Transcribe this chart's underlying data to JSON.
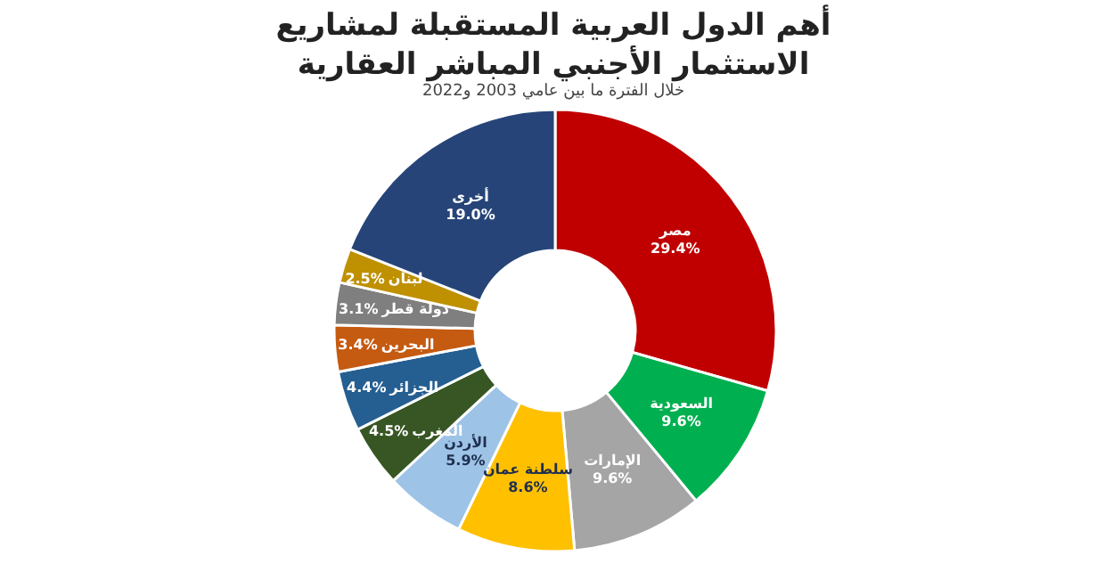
{
  "chart_data": {
    "type": "donut",
    "title": "أهم الدول العربية المستقبلة لمشاريع\nالاستثمار الأجنبي المباشر العقارية",
    "subtitle": "خلال الفترة ما بين عامي 2003 و2022",
    "categories": [
      "مصر",
      "السعودية",
      "الإمارات",
      "سلطنة عمان",
      "الأردن",
      "المغرب",
      "الجزائر",
      "البحرين",
      "دولة قطر",
      "لبنان",
      "أخرى"
    ],
    "values": [
      29.4,
      9.6,
      9.6,
      8.6,
      5.9,
      4.5,
      4.4,
      3.4,
      3.1,
      2.5,
      19.0
    ],
    "colors": [
      "#c00000",
      "#00b050",
      "#a5a5a5",
      "#ffc000",
      "#9dc3e6",
      "#375623",
      "#255e91",
      "#c55a11",
      "#7f7f7f",
      "#bf9000",
      "#264478"
    ],
    "value_labels": [
      "29.4%",
      "9.6%",
      "9.6%",
      "8.6%",
      "5.9%",
      "4.5%",
      "4.4%",
      "3.4%",
      "3.1%",
      "2.5%",
      "19.0%"
    ]
  }
}
